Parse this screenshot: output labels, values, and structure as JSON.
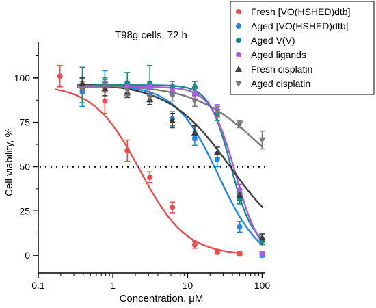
{
  "chart_data": {
    "type": "scatter",
    "annotation": "T98g cells, 72 h",
    "xlabel": "Concentration, μM",
    "ylabel": "Cell viability, %",
    "xscale": "log",
    "xlim": [
      0.1,
      110
    ],
    "ylim": [
      -10,
      120
    ],
    "x_ticks": [
      0.1,
      1,
      10,
      100
    ],
    "x_tick_labels": [
      "0.1",
      "1",
      "10",
      "100"
    ],
    "y_ticks": [
      0,
      25,
      50,
      75,
      100
    ],
    "y_tick_labels": [
      "0",
      "25",
      "50",
      "75",
      "100"
    ],
    "reference_line_y": 50,
    "legend_position": "top-right",
    "series": [
      {
        "name": "Fresh [VO(HSHED)dtb]",
        "color": "#ef4b4b",
        "marker": "circle",
        "x": [
          0.195,
          0.39,
          0.78,
          1.56,
          3.125,
          6.25,
          12.5,
          25,
          50
        ],
        "y": [
          101,
          93,
          87,
          59,
          44,
          27,
          6,
          2,
          1
        ],
        "err": [
          6,
          7,
          7,
          6,
          3,
          3,
          2,
          1,
          1
        ],
        "fit": {
          "top": 96,
          "bottom": 0,
          "ic50": 2.3,
          "hill": 1.4
        }
      },
      {
        "name": "Aged [VO(HSHED)dtb]",
        "color": "#2288e8",
        "marker": "circle",
        "x": [
          0.39,
          0.78,
          1.56,
          3.125,
          6.25,
          12.5,
          25,
          50,
          100
        ],
        "y": [
          92,
          97,
          97,
          90,
          77,
          66,
          54,
          16,
          0
        ],
        "err": [
          8,
          7,
          6,
          4,
          4,
          4,
          4,
          3,
          1
        ],
        "fit": {
          "top": 96,
          "bottom": -6,
          "ic50": 26,
          "hill": 1.5
        }
      },
      {
        "name": "Aged V(V)",
        "color": "#1a8c82",
        "marker": "circle",
        "x": [
          0.39,
          0.78,
          1.56,
          3.125,
          6.25,
          12.5,
          25,
          50,
          100
        ],
        "y": [
          96,
          96,
          97,
          97,
          95,
          95,
          80,
          32,
          8
        ],
        "err": [
          10,
          4,
          6,
          10,
          3,
          3,
          4,
          3,
          2
        ],
        "fit": {
          "top": 96,
          "bottom": 5,
          "ic50": 38,
          "hill": 3.0
        }
      },
      {
        "name": "Aged ligands",
        "color": "#a75be8",
        "marker": "circle",
        "x": [
          0.39,
          0.78,
          1.56,
          3.125,
          6.25,
          12.5,
          25,
          50,
          100
        ],
        "y": [
          95,
          95,
          95,
          95,
          93,
          91,
          82,
          37,
          1
        ],
        "err": [
          3,
          3,
          3,
          3,
          3,
          3,
          3,
          3,
          1
        ],
        "fit": {
          "top": 95,
          "bottom": -3,
          "ic50": 44,
          "hill": 2.6
        }
      },
      {
        "name": "Fresh cisplatin",
        "color": "#3c3c3c",
        "marker": "triangle-up",
        "x": [
          0.39,
          0.78,
          1.56,
          3.125,
          6.25,
          12.5,
          25,
          50,
          100
        ],
        "y": [
          97,
          94,
          92,
          88,
          76,
          69,
          58,
          34,
          10
        ],
        "err": [
          3,
          4,
          3,
          3,
          4,
          4,
          3,
          3,
          2
        ],
        "fit": {
          "top": 97,
          "bottom": 2,
          "ic50": 38,
          "hill": 1.05
        }
      },
      {
        "name": "Aged cisplatin",
        "color": "#7a7a7a",
        "marker": "triangle-down",
        "x": [
          0.39,
          0.78,
          1.56,
          3.125,
          6.25,
          12.5,
          25,
          50,
          100
        ],
        "y": [
          94,
          96,
          93,
          89,
          90,
          87,
          81,
          74,
          65
        ],
        "err": [
          3,
          3,
          3,
          3,
          3,
          3,
          3,
          2,
          5
        ],
        "fit": {
          "top": 96,
          "bottom": 30,
          "ic50": 90,
          "hill": 1.0
        }
      }
    ]
  }
}
